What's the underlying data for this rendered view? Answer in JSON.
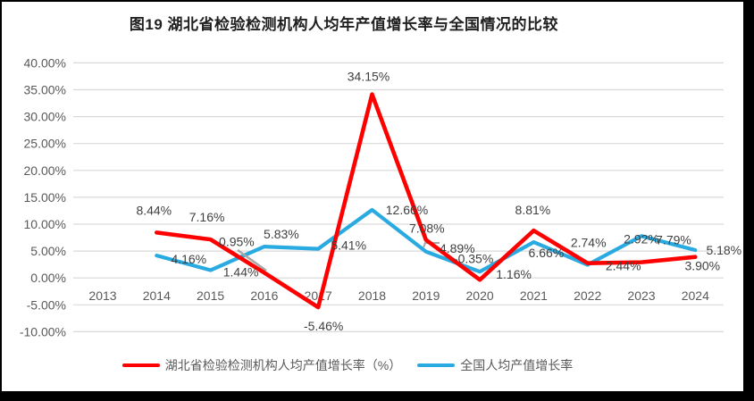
{
  "window": {
    "background": "#000000",
    "canvas": "#FFFFFF"
  },
  "chart_data": {
    "type": "line",
    "title": "图19  湖北省检验检测机构人均年产值增长率与全国情况的比较",
    "categories": [
      "2013",
      "2014",
      "2015",
      "2016",
      "2017",
      "2018",
      "2019",
      "2020",
      "2021",
      "2022",
      "2023",
      "2024"
    ],
    "series": [
      {
        "name": "湖北省检验检测机构人均产值增长率（%）",
        "color": "#FF0000",
        "values": [
          null,
          8.44,
          7.16,
          0.95,
          -5.46,
          34.15,
          7.08,
          -0.35,
          8.81,
          2.74,
          2.92,
          3.9
        ]
      },
      {
        "name": "全国人均产值增长率",
        "color": "#29ABE2",
        "values": [
          null,
          4.16,
          1.44,
          5.83,
          5.41,
          12.66,
          4.89,
          1.16,
          6.66,
          2.44,
          7.79,
          5.18
        ]
      }
    ],
    "y_axis": {
      "min": -10,
      "max": 40,
      "step": 5,
      "tick_format": "0.00%"
    },
    "x_axis": {
      "label_position": "below-zero-line"
    },
    "grid": true,
    "data_labels": true,
    "legend_position": "bottom",
    "colors": {
      "gridline": "#D9D9D9",
      "axis_text": "#595959",
      "data_label_text": "#3F3F3F",
      "leader_line": "#A6A6A6",
      "title_text": "#1F1F1F",
      "legend_text": "#595959"
    }
  }
}
